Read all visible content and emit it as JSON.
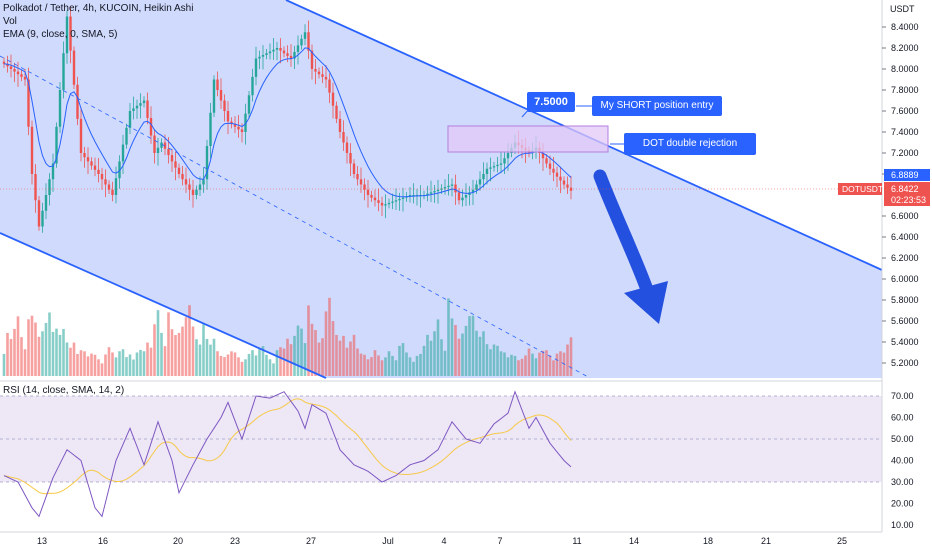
{
  "header": {
    "title": "Polkadot / Tether, 4h, KUCOIN, Heikin Ashi",
    "vol_label": "Vol",
    "ema_label": "EMA (9, close, 0, SMA, 5)",
    "rsi_label": "RSI (14, close, SMA, 14, 2)"
  },
  "price_axis": {
    "currency": "USDT",
    "ticks": [
      "8.4000",
      "8.2000",
      "8.0000",
      "7.8000",
      "7.6000",
      "7.4000",
      "7.2000",
      "7.0000",
      "6.6000",
      "6.4000",
      "6.2000",
      "6.0000",
      "5.8000",
      "5.6000",
      "5.4000",
      "5.2000"
    ],
    "current_price": "6.8422",
    "prev_price": "6.8889",
    "countdown": "02:23:53",
    "symbol": "DOTUSDT"
  },
  "rsi_axis": {
    "ticks": [
      "70.00",
      "60.00",
      "50.00",
      "40.00",
      "30.00",
      "20.00",
      "10.00"
    ]
  },
  "time_axis": {
    "ticks": [
      "13",
      "16",
      "20",
      "23",
      "27",
      "Jul",
      "4",
      "7",
      "11",
      "14",
      "18",
      "21",
      "25"
    ]
  },
  "annotations": {
    "entry_price": "7.5000",
    "short_entry": "My SHORT position entry",
    "double_rejection": "DOT double rejection"
  },
  "colors": {
    "up": "#26a69a",
    "down": "#ef5350",
    "channel": "#2962ff",
    "channel_fill": "#c8d3fb",
    "rsi": "#7e57c2",
    "rsi_ma": "#f7c948",
    "zone": "#e1c8f7"
  },
  "chart_data": [
    {
      "type": "candlestick",
      "title": "Polkadot / Tether, 4h, KUCOIN, Heikin Ashi",
      "ylabel": "USDT",
      "y_ticks": [
        8.4,
        8.2,
        8.0,
        7.8,
        7.6,
        7.4,
        7.2,
        7.0,
        6.6,
        6.4,
        6.2,
        6.0,
        5.8,
        5.6,
        5.4,
        5.2
      ],
      "x_ticks": [
        "13",
        "16",
        "20",
        "23",
        "27",
        "Jul",
        "4",
        "7",
        "11",
        "14",
        "18",
        "21",
        "25"
      ],
      "last_price": 6.8422,
      "ema_last": 6.8889,
      "series": [
        {
          "name": "DOTUSDT",
          "keypoints": [
            [
              0,
              8.05
            ],
            [
              6,
              7.9
            ],
            [
              8,
              7.0
            ],
            [
              10,
              6.5
            ],
            [
              14,
              7.1
            ],
            [
              18,
              8.5
            ],
            [
              22,
              7.2
            ],
            [
              27,
              7.0
            ],
            [
              31,
              6.8
            ],
            [
              36,
              7.6
            ],
            [
              40,
              7.7
            ],
            [
              43,
              7.2
            ],
            [
              45,
              7.3
            ],
            [
              50,
              7.0
            ],
            [
              54,
              6.8
            ],
            [
              57,
              6.95
            ],
            [
              60,
              7.9
            ],
            [
              64,
              7.5
            ],
            [
              68,
              7.4
            ],
            [
              72,
              8.1
            ],
            [
              78,
              8.2
            ],
            [
              82,
              8.1
            ],
            [
              86,
              8.35
            ],
            [
              88,
              8.0
            ],
            [
              92,
              7.9
            ],
            [
              96,
              7.4
            ],
            [
              100,
              7.0
            ],
            [
              104,
              6.8
            ],
            [
              108,
              6.7
            ],
            [
              112,
              6.75
            ],
            [
              116,
              6.8
            ],
            [
              120,
              6.8
            ],
            [
              124,
              6.85
            ],
            [
              128,
              6.9
            ],
            [
              130,
              6.75
            ],
            [
              134,
              6.85
            ],
            [
              138,
              7.05
            ],
            [
              142,
              7.1
            ],
            [
              146,
              7.3
            ],
            [
              150,
              7.2
            ],
            [
              152,
              7.25
            ],
            [
              156,
              7.05
            ],
            [
              160,
              6.9
            ],
            [
              162,
              6.84
            ]
          ],
          "count": 163
        },
        {
          "name": "EMA (9, close, 0, SMA, 5)",
          "derived": "ema-9"
        }
      ]
    },
    {
      "type": "bar",
      "title": "Vol",
      "series": [
        {
          "name": "Vol",
          "relative_values": [
            0.35,
            0.5,
            0.45,
            0.6,
            0.8,
            0.55,
            0.4,
            0.9,
            0.7,
            0.65,
            0.5,
            0.6,
            0.75,
            0.95,
            0.7,
            0.55,
            0.5,
            0.6,
            0.45,
            0.4,
            0.5,
            0.35,
            0.3,
            0.3,
            0.25,
            0.3,
            0.3,
            0.25,
            0.2,
            0.25,
            0.35,
            0.3,
            0.25,
            0.35,
            0.4,
            0.3,
            0.25,
            0.2,
            0.3,
            0.35
          ]
        }
      ]
    },
    {
      "type": "line",
      "title": "RSI (14, close, SMA, 14, 2)",
      "ylim": [
        10,
        70
      ],
      "y_ticks": [
        70,
        60,
        50,
        40,
        30,
        20,
        10
      ],
      "bands": {
        "upper": 70,
        "middle": 50,
        "lower": 30
      },
      "series": [
        {
          "name": "RSI",
          "keypoints": [
            [
              0,
              33
            ],
            [
              4,
              30
            ],
            [
              8,
              18
            ],
            [
              10,
              14
            ],
            [
              14,
              32
            ],
            [
              18,
              45
            ],
            [
              22,
              40
            ],
            [
              26,
              18
            ],
            [
              28,
              14
            ],
            [
              32,
              40
            ],
            [
              36,
              55
            ],
            [
              40,
              38
            ],
            [
              44,
              58
            ],
            [
              48,
              40
            ],
            [
              50,
              25
            ],
            [
              54,
              38
            ],
            [
              58,
              50
            ],
            [
              62,
              60
            ],
            [
              64,
              67
            ],
            [
              68,
              50
            ],
            [
              72,
              70
            ],
            [
              76,
              69
            ],
            [
              80,
              72
            ],
            [
              84,
              63
            ],
            [
              86,
              55
            ],
            [
              88,
              66
            ],
            [
              92,
              62
            ],
            [
              96,
              45
            ],
            [
              100,
              38
            ],
            [
              104,
              35
            ],
            [
              108,
              30
            ],
            [
              112,
              33
            ],
            [
              116,
              38
            ],
            [
              120,
              40
            ],
            [
              124,
              45
            ],
            [
              128,
              58
            ],
            [
              132,
              50
            ],
            [
              136,
              48
            ],
            [
              140,
              57
            ],
            [
              144,
              62
            ],
            [
              146,
              72
            ],
            [
              150,
              55
            ],
            [
              152,
              60
            ],
            [
              156,
              48
            ],
            [
              160,
              40
            ],
            [
              162,
              37
            ]
          ]
        },
        {
          "name": "RSI MA",
          "derived": "sma-14"
        }
      ]
    }
  ]
}
